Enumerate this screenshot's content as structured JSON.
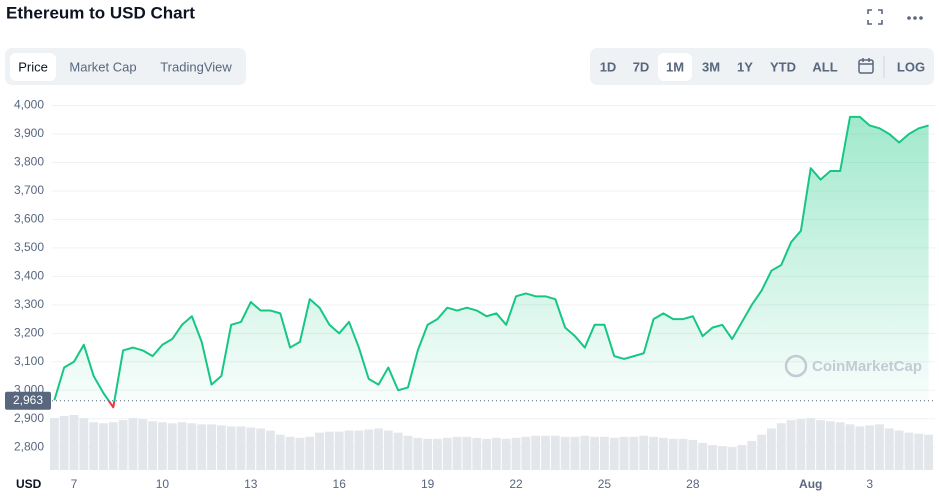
{
  "tabs": [
    "Price",
    "Market Cap",
    "TradingView"
  ],
  "active_tab": 0,
  "ranges": [
    "1D",
    "7D",
    "1M",
    "3M",
    "1Y",
    "YTD",
    "ALL",
    "LOG"
  ],
  "active_range": 2,
  "chart_data": {
    "type": "line",
    "title": "Ethereum to USD Chart",
    "axis_label": "USD",
    "watermark": "CoinMarketCap",
    "color": "#16c784",
    "below_color": "#ea3943",
    "volume_color": "#e3e6eb",
    "baseline": {
      "value": 2963,
      "label": "2,963"
    },
    "categories": [
      null,
      null,
      "7",
      null,
      null,
      null,
      null,
      null,
      null,
      null,
      null,
      "10",
      null,
      null,
      null,
      null,
      null,
      null,
      null,
      null,
      "13",
      null,
      null,
      null,
      null,
      null,
      null,
      null,
      null,
      "16",
      null,
      null,
      null,
      null,
      null,
      null,
      null,
      null,
      "19",
      null,
      null,
      null,
      null,
      null,
      null,
      null,
      null,
      "22",
      null,
      null,
      null,
      null,
      null,
      null,
      null,
      null,
      "25",
      null,
      null,
      null,
      null,
      null,
      null,
      null,
      null,
      "28",
      null,
      null,
      null,
      null,
      null,
      null,
      null,
      null,
      null,
      null,
      null,
      "Aug",
      null,
      null,
      null,
      null,
      null,
      "3",
      null,
      null,
      null,
      null,
      null,
      null
    ],
    "values": [
      2965,
      3080,
      3100,
      3160,
      3050,
      2990,
      2940,
      3140,
      3150,
      3140,
      3120,
      3160,
      3180,
      3230,
      3260,
      3170,
      3020,
      3050,
      3230,
      3240,
      3310,
      3280,
      3280,
      3270,
      3150,
      3170,
      3320,
      3290,
      3230,
      3200,
      3240,
      3150,
      3040,
      3020,
      3080,
      3000,
      3010,
      3140,
      3230,
      3250,
      3290,
      3280,
      3290,
      3280,
      3260,
      3270,
      3230,
      3330,
      3340,
      3330,
      3330,
      3320,
      3220,
      3190,
      3150,
      3230,
      3230,
      3120,
      3110,
      3120,
      3130,
      3250,
      3270,
      3250,
      3250,
      3260,
      3190,
      3220,
      3230,
      3180,
      3240,
      3300,
      3350,
      3420,
      3440,
      3520,
      3560,
      3780,
      3740,
      3770,
      3770,
      3960,
      3960,
      3930,
      3920,
      3900,
      3870,
      3900,
      3920,
      3930
    ],
    "volume": [
      50,
      52,
      53,
      50,
      46,
      45,
      46,
      48,
      50,
      49,
      47,
      46,
      45,
      46,
      45,
      44,
      44,
      43,
      42,
      42,
      41,
      40,
      38,
      34,
      32,
      31,
      32,
      36,
      37,
      37,
      38,
      38,
      39,
      40,
      38,
      36,
      33,
      31,
      30,
      30,
      31,
      32,
      32,
      31,
      30,
      31,
      30,
      31,
      32,
      33,
      33,
      33,
      32,
      32,
      33,
      32,
      32,
      31,
      32,
      32,
      33,
      32,
      31,
      30,
      30,
      29,
      26,
      24,
      23,
      22,
      24,
      28,
      34,
      40,
      45,
      48,
      49,
      50,
      48,
      47,
      46,
      44,
      42,
      43,
      44,
      40,
      38,
      36,
      35,
      34
    ],
    "ylim": [
      2720,
      4030
    ],
    "yticks": [
      {
        "value": 2800,
        "label": "2,800"
      },
      {
        "value": 2900,
        "label": "2,900"
      },
      {
        "value": 3000,
        "label": "3,000"
      },
      {
        "value": 3100,
        "label": "3,100"
      },
      {
        "value": 3200,
        "label": "3,200"
      },
      {
        "value": 3300,
        "label": "3,300"
      },
      {
        "value": 3400,
        "label": "3,400"
      },
      {
        "value": 3500,
        "label": "3,500"
      },
      {
        "value": 3600,
        "label": "3,600"
      },
      {
        "value": 3700,
        "label": "3,700"
      },
      {
        "value": 3800,
        "label": "3,800"
      },
      {
        "value": 3900,
        "label": "3,900"
      },
      {
        "value": 4000,
        "label": "4,000"
      }
    ],
    "grid": true
  }
}
